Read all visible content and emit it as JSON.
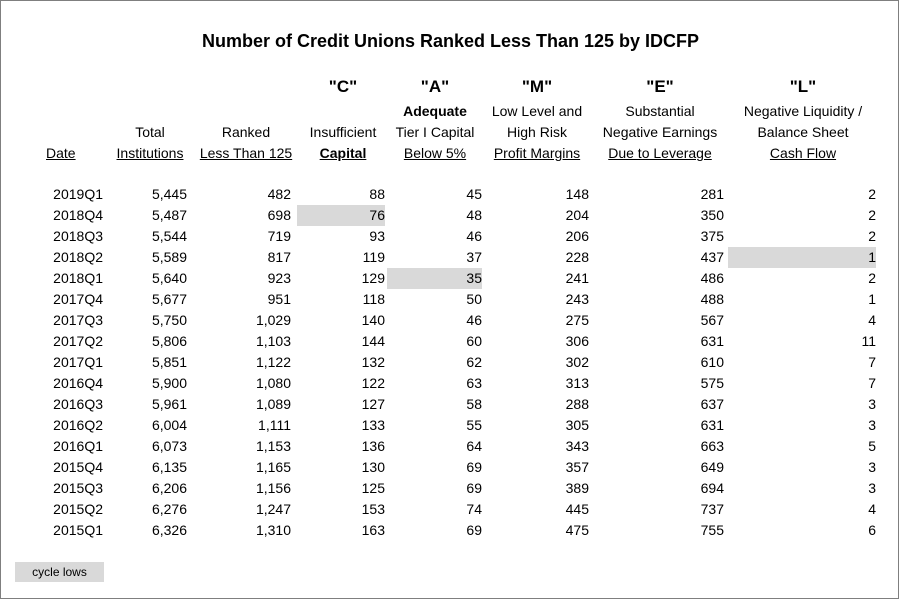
{
  "title": "Number of Credit Unions Ranked Less Than 125 by IDCFP",
  "headers": {
    "date": "Date",
    "total_l1": "Total",
    "total_l2": "Institutions",
    "ranked_l1": "Ranked",
    "ranked_l2": "Less Than 125",
    "c_letter": "\"C\"",
    "c_l1": "Insufficient",
    "c_l2": "Capital",
    "a_letter": "\"A\"",
    "a_l1": "Adequate",
    "a_l2": "Tier I Capital",
    "a_l3": "Below 5%",
    "m_letter": "\"M\"",
    "m_l1": "Low Level and",
    "m_l2": "High Risk",
    "m_l3": "Profit Margins",
    "e_letter": "\"E\"",
    "e_l1": "Substantial",
    "e_l2": "Negative Earnings",
    "e_l3": "Due to Leverage",
    "l_letter": "\"L\"",
    "l_l1": "Negative Liquidity /",
    "l_l2": "Balance Sheet",
    "l_l3": "Cash Flow"
  },
  "rows": [
    {
      "date": "2019Q1",
      "total": "5,445",
      "ranked": "482",
      "c": "88",
      "a": "45",
      "m": "148",
      "e": "281",
      "l": "2"
    },
    {
      "date": "2018Q4",
      "total": "5,487",
      "ranked": "698",
      "c": "76",
      "a": "48",
      "m": "204",
      "e": "350",
      "l": "2"
    },
    {
      "date": "2018Q3",
      "total": "5,544",
      "ranked": "719",
      "c": "93",
      "a": "46",
      "m": "206",
      "e": "375",
      "l": "2"
    },
    {
      "date": "2018Q2",
      "total": "5,589",
      "ranked": "817",
      "c": "119",
      "a": "37",
      "m": "228",
      "e": "437",
      "l": "1"
    },
    {
      "date": "2018Q1",
      "total": "5,640",
      "ranked": "923",
      "c": "129",
      "a": "35",
      "m": "241",
      "e": "486",
      "l": "2"
    },
    {
      "date": "2017Q4",
      "total": "5,677",
      "ranked": "951",
      "c": "118",
      "a": "50",
      "m": "243",
      "e": "488",
      "l": "1"
    },
    {
      "date": "2017Q3",
      "total": "5,750",
      "ranked": "1,029",
      "c": "140",
      "a": "46",
      "m": "275",
      "e": "567",
      "l": "4"
    },
    {
      "date": "2017Q2",
      "total": "5,806",
      "ranked": "1,103",
      "c": "144",
      "a": "60",
      "m": "306",
      "e": "631",
      "l": "11"
    },
    {
      "date": "2017Q1",
      "total": "5,851",
      "ranked": "1,122",
      "c": "132",
      "a": "62",
      "m": "302",
      "e": "610",
      "l": "7"
    },
    {
      "date": "2016Q4",
      "total": "5,900",
      "ranked": "1,080",
      "c": "122",
      "a": "63",
      "m": "313",
      "e": "575",
      "l": "7"
    },
    {
      "date": "2016Q3",
      "total": "5,961",
      "ranked": "1,089",
      "c": "127",
      "a": "58",
      "m": "288",
      "e": "637",
      "l": "3"
    },
    {
      "date": "2016Q2",
      "total": "6,004",
      "ranked": "1,111",
      "c": "133",
      "a": "55",
      "m": "305",
      "e": "631",
      "l": "3"
    },
    {
      "date": "2016Q1",
      "total": "6,073",
      "ranked": "1,153",
      "c": "136",
      "a": "64",
      "m": "343",
      "e": "663",
      "l": "5"
    },
    {
      "date": "2015Q4",
      "total": "6,135",
      "ranked": "1,165",
      "c": "130",
      "a": "69",
      "m": "357",
      "e": "649",
      "l": "3"
    },
    {
      "date": "2015Q3",
      "total": "6,206",
      "ranked": "1,156",
      "c": "125",
      "a": "69",
      "m": "389",
      "e": "694",
      "l": "3"
    },
    {
      "date": "2015Q2",
      "total": "6,276",
      "ranked": "1,247",
      "c": "153",
      "a": "74",
      "m": "445",
      "e": "737",
      "l": "4"
    },
    {
      "date": "2015Q1",
      "total": "6,326",
      "ranked": "1,310",
      "c": "163",
      "a": "69",
      "m": "475",
      "e": "755",
      "l": "6"
    }
  ],
  "highlights": [
    {
      "row": 1,
      "col": "c"
    },
    {
      "row": 4,
      "col": "a"
    },
    {
      "row": 3,
      "col": "l"
    }
  ],
  "legend": "cycle lows",
  "highlight_color": "#d9d9d9"
}
